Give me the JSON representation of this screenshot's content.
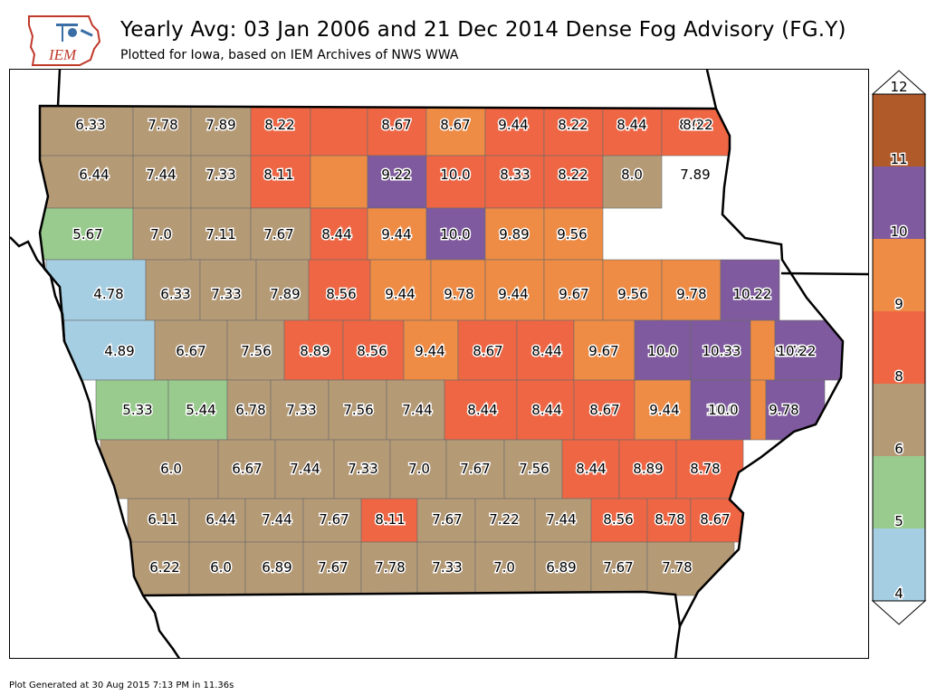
{
  "header": {
    "logo_text": "IEM",
    "title": "Yearly Avg: 03 Jan 2006 and 21 Dec 2014 Dense Fog Advisory (FG.Y)",
    "subtitle": "Plotted for Iowa, based on IEM Archives of NWS WWA"
  },
  "footer": {
    "generated": "Plot Generated at 30 Aug 2015 7:13 PM in 11.36s"
  },
  "legend": {
    "ticks": [
      "4",
      "5",
      "6",
      "8",
      "9",
      "10",
      "11",
      "12"
    ],
    "bins": [
      {
        "from": 4,
        "to": 5,
        "color": "#a6cee3"
      },
      {
        "from": 5,
        "to": 6,
        "color": "#98cb8d"
      },
      {
        "from": 6,
        "to": 8,
        "color": "#b59a76"
      },
      {
        "from": 8,
        "to": 9,
        "color": "#ee6644"
      },
      {
        "from": 9,
        "to": 10,
        "color": "#ee8b44"
      },
      {
        "from": 10,
        "to": 11,
        "color": "#7f5a9e"
      },
      {
        "from": 11,
        "to": 12,
        "color": "#b05a2a"
      }
    ]
  },
  "chart_data": {
    "type": "choropleth",
    "region": "Iowa counties",
    "units": "yearly average count",
    "rows": [
      [
        "6.33",
        "7.78",
        "7.89",
        "8.22",
        "8.67",
        "8.67",
        "9.44",
        "8.22",
        "8.44",
        "8.0",
        "8.22"
      ],
      [
        "6.44",
        "7.44",
        "7.33",
        "8.11",
        "9.22",
        "10.0",
        "8.33",
        "8.22",
        "8.0",
        "7.89"
      ],
      [
        "5.67",
        "7.0",
        "7.11",
        "7.67",
        "8.44",
        "9.44",
        "10.0",
        "9.89",
        "9.56"
      ],
      [
        "4.78",
        "6.33",
        "7.33",
        "7.89",
        "8.56",
        "9.44",
        "9.78",
        "9.44",
        "9.67",
        "9.56",
        "9.78",
        "10.22"
      ],
      [
        "4.89",
        "6.67",
        "7.56",
        "8.89",
        "8.56",
        "9.44",
        "8.67",
        "8.44",
        "9.67",
        "10.0",
        "10.33",
        "9.78",
        "10.22"
      ],
      [
        "5.33",
        "5.44",
        "6.78",
        "7.33",
        "7.56",
        "7.44",
        "8.44",
        "8.44",
        "8.67",
        "9.44",
        "10.0",
        "9.78",
        "10.0"
      ],
      [
        "6.0",
        "6.67",
        "7.44",
        "7.33",
        "7.0",
        "7.67",
        "7.56",
        "8.44",
        "8.89",
        "8.78"
      ],
      [
        "6.11",
        "6.44",
        "7.44",
        "7.67",
        "8.11",
        "7.67",
        "7.22",
        "7.44",
        "8.56",
        "8.78",
        "8.67"
      ],
      [
        "6.22",
        "6.0",
        "6.89",
        "7.67",
        "7.78",
        "7.33",
        "7.0",
        "6.89",
        "7.67",
        "7.78"
      ]
    ]
  }
}
